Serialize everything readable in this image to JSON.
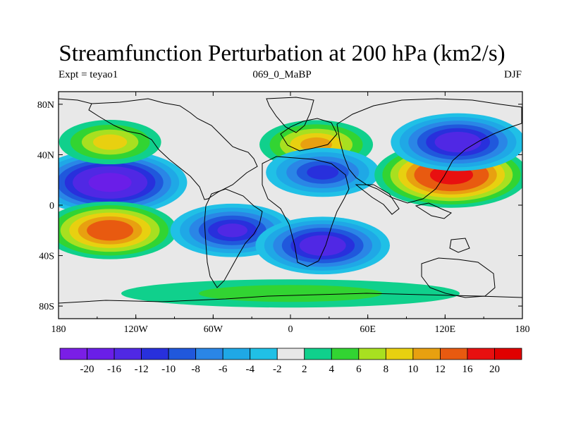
{
  "chart_data": {
    "type": "contour_map",
    "title": "Streamfunction Perturbation at 200 hPa (km2/s)",
    "left_label": "Expt = teyao1",
    "center_label": "069_0_MaBP",
    "right_label": "DJF",
    "x_ticks": [
      "180",
      "120W",
      "60W",
      "0",
      "60E",
      "120E",
      "180"
    ],
    "x_tick_values": [
      -180,
      -120,
      -60,
      0,
      60,
      120,
      180
    ],
    "y_ticks": [
      "80N",
      "40N",
      "0",
      "40S",
      "80S"
    ],
    "y_tick_values": [
      80,
      40,
      0,
      -40,
      -80
    ],
    "xlim": [
      -180,
      180
    ],
    "ylim": [
      -90,
      90
    ],
    "colorbar": {
      "labels": [
        "-20",
        "-16",
        "-12",
        "-10",
        "-8",
        "-6",
        "-4",
        "-2",
        "2",
        "4",
        "6",
        "8",
        "10",
        "12",
        "16",
        "20"
      ],
      "levels": [
        -20,
        -16,
        -12,
        -10,
        -8,
        -6,
        -4,
        -2,
        2,
        4,
        6,
        8,
        10,
        12,
        16,
        20
      ],
      "colors": [
        "#7a1ee6",
        "#6a1ee8",
        "#5028e4",
        "#2830dc",
        "#2058dc",
        "#2a86e6",
        "#1fa8e6",
        "#20c0e6",
        "#e8e8e8",
        "#10d08c",
        "#32d432",
        "#a8e020",
        "#e8d010",
        "#e8a010",
        "#e85a10",
        "#e81010",
        "#e00000"
      ]
    },
    "features": [
      {
        "name": "north-pacific-low",
        "lon": -140,
        "lat": 18,
        "value": -18
      },
      {
        "name": "south-pacific-high",
        "lon": -140,
        "lat": -20,
        "value": 14
      },
      {
        "name": "south-america-low",
        "lon": -45,
        "lat": -20,
        "value": -12
      },
      {
        "name": "south-africa-low",
        "lon": 25,
        "lat": -32,
        "value": -14
      },
      {
        "name": "mediterranean-high",
        "lon": 20,
        "lat": 48,
        "value": 10
      },
      {
        "name": "north-africa-low",
        "lon": 25,
        "lat": 26,
        "value": -10
      },
      {
        "name": "asia-high",
        "lon": 125,
        "lat": 24,
        "value": 18
      },
      {
        "name": "siberia-low",
        "lon": 130,
        "lat": 50,
        "value": -14
      },
      {
        "name": "atlantic-high",
        "lon": -140,
        "lat": 50,
        "value": 8
      },
      {
        "name": "southern-ocean-band",
        "lon": 0,
        "lat": -70,
        "value": 4
      }
    ]
  }
}
